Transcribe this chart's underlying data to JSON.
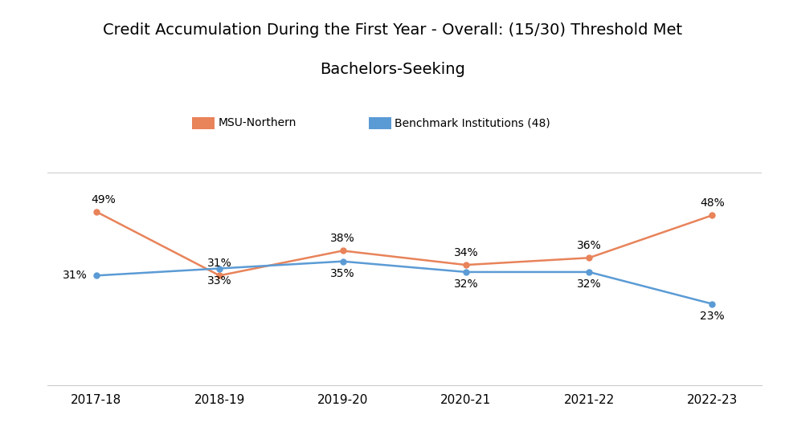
{
  "title_line1": "Credit Accumulation During the First Year - Overall: (15/30) Threshold Met",
  "title_line2": "Bachelors-Seeking",
  "categories": [
    "2017-18",
    "2018-19",
    "2019-20",
    "2020-21",
    "2021-22",
    "2022-23"
  ],
  "msu_northern": [
    49,
    31,
    38,
    34,
    36,
    48
  ],
  "benchmark": [
    31,
    33,
    35,
    32,
    32,
    23
  ],
  "msu_color": "#E8835A",
  "benchmark_color": "#5B9BD5",
  "legend_msu": "MSU-Northern",
  "legend_benchmark": "Benchmark Institutions (48)",
  "background_color": "#ffffff",
  "title_fontsize": 14,
  "label_fontsize": 10,
  "legend_fontsize": 10,
  "tick_fontsize": 11,
  "ylim": [
    0,
    60
  ],
  "xlim": [
    -0.4,
    5.4
  ],
  "linewidth": 1.8,
  "markersize": 5
}
